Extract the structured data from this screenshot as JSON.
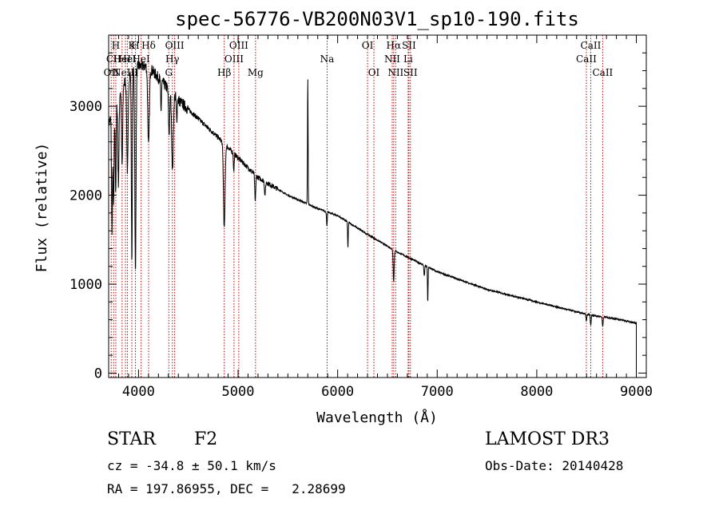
{
  "chart_data": {
    "type": "line",
    "title": "spec-56776-VB200N03V1_sp10-190.fits",
    "xlabel": "Wavelength (Å)",
    "ylabel": "Flux (relative)",
    "xlim": [
      3700,
      9100
    ],
    "ylim": [
      -50,
      3800
    ],
    "xticks": [
      4000,
      5000,
      6000,
      7000,
      8000,
      9000
    ],
    "yticks": [
      0,
      1000,
      2000,
      3000
    ],
    "continuum_anchors": {
      "wavelength": [
        3700,
        3800,
        3900,
        4000,
        4100,
        4200,
        4400,
        4600,
        4800,
        5000,
        5200,
        5500,
        5800,
        6000,
        6300,
        6600,
        7000,
        7500,
        8000,
        8500,
        8800,
        9000
      ],
      "flux": [
        2800,
        3150,
        3350,
        3450,
        3450,
        3320,
        3070,
        2860,
        2650,
        2420,
        2200,
        2000,
        1850,
        1770,
        1560,
        1360,
        1140,
        940,
        800,
        660,
        610,
        560
      ]
    },
    "absorption_lines": [
      {
        "wavelength": 3734,
        "depth": 1300,
        "width": 5
      },
      {
        "wavelength": 3750,
        "depth": 1100,
        "width": 5
      },
      {
        "wavelength": 3771,
        "depth": 1000,
        "width": 5
      },
      {
        "wavelength": 3798,
        "depth": 1000,
        "width": 6
      },
      {
        "wavelength": 3835,
        "depth": 900,
        "width": 6
      },
      {
        "wavelength": 3889,
        "depth": 1050,
        "width": 7
      },
      {
        "wavelength": 3933,
        "depth": 2100,
        "width": 5
      },
      {
        "wavelength": 3969,
        "depth": 2300,
        "width": 6
      },
      {
        "wavelength": 4101,
        "depth": 900,
        "width": 8
      },
      {
        "wavelength": 4226,
        "depth": 350,
        "width": 4
      },
      {
        "wavelength": 4307,
        "depth": 500,
        "width": 6
      },
      {
        "wavelength": 4341,
        "depth": 850,
        "width": 8
      },
      {
        "wavelength": 4384,
        "depth": 250,
        "width": 4
      },
      {
        "wavelength": 4861,
        "depth": 950,
        "width": 8
      },
      {
        "wavelength": 4957,
        "depth": 200,
        "width": 4
      },
      {
        "wavelength": 5172,
        "depth": 300,
        "width": 5
      },
      {
        "wavelength": 5270,
        "depth": 150,
        "width": 5
      },
      {
        "wavelength": 5892,
        "depth": 150,
        "width": 4
      },
      {
        "wavelength": 6103,
        "depth": 300,
        "width": 3
      },
      {
        "wavelength": 6563,
        "depth": 350,
        "width": 5
      },
      {
        "wavelength": 6870,
        "depth": 120,
        "width": 4
      },
      {
        "wavelength": 6905,
        "depth": 400,
        "width": 3
      },
      {
        "wavelength": 8498,
        "depth": 80,
        "width": 4
      },
      {
        "wavelength": 8542,
        "depth": 120,
        "width": 4
      },
      {
        "wavelength": 8662,
        "depth": 110,
        "width": 4
      }
    ],
    "emission_spikes": [
      {
        "wavelength": 5700,
        "height": 1400,
        "width": 3
      }
    ],
    "spectral_lines": [
      {
        "wavelength": 3726,
        "label": "OII",
        "row": 2
      },
      {
        "wavelength": 3750,
        "label": "CII",
        "row": 1
      },
      {
        "wavelength": 3772,
        "label": "H",
        "row": 0
      },
      {
        "wavelength": 3835,
        "label": "HeI",
        "row": 1
      },
      {
        "wavelength": 3869,
        "label": "NeIII",
        "row": 2
      },
      {
        "wavelength": 3889,
        "label": "HeI",
        "row": 1
      },
      {
        "wavelength": 3933,
        "label": "K",
        "row": 0
      },
      {
        "wavelength": 3969,
        "label": "H",
        "row": 0
      },
      {
        "wavelength": 4026,
        "label": "HeI",
        "row": 1
      },
      {
        "wavelength": 4101,
        "label": "Hδ",
        "row": 0
      },
      {
        "wavelength": 4304,
        "label": "G",
        "row": 2
      },
      {
        "wavelength": 4340,
        "label": "Hγ",
        "row": 1
      },
      {
        "wavelength": 4363,
        "label": "OIII",
        "row": 0
      },
      {
        "wavelength": 4861,
        "label": "Hβ",
        "row": 2
      },
      {
        "wavelength": 4959,
        "label": "OIII",
        "row": 1
      },
      {
        "wavelength": 5007,
        "label": "OIII",
        "row": 0
      },
      {
        "wavelength": 5175,
        "label": "Mg",
        "row": 2
      },
      {
        "wavelength": 5894,
        "label": "Na",
        "row": 1
      },
      {
        "wavelength": 6300,
        "label": "OI",
        "row": 0
      },
      {
        "wavelength": 6364,
        "label": "OI",
        "row": 2
      },
      {
        "wavelength": 6548,
        "label": "NII",
        "row": 1
      },
      {
        "wavelength": 6563,
        "label": "Hα",
        "row": 0
      },
      {
        "wavelength": 6583,
        "label": "NII",
        "row": 2
      },
      {
        "wavelength": 6716,
        "label": "SII",
        "row": 0
      },
      {
        "wavelength": 6731,
        "label": "SII",
        "row": 2
      },
      {
        "wavelength": 6708,
        "label": "Li",
        "row": 1
      },
      {
        "wavelength": 8498,
        "label": "CaII",
        "row": 1
      },
      {
        "wavelength": 8542,
        "label": "CaII",
        "row": 0
      },
      {
        "wavelength": 8662,
        "label": "CaII",
        "row": 2
      }
    ]
  },
  "footer": {
    "object_type": "STAR",
    "subclass": "F2",
    "survey": "LAMOST DR3",
    "cz_line": "cz = -34.8 ± 50.1 km/s",
    "obs_date": "Obs-Date: 20140428",
    "radec_line": "RA = 197.86955, DEC =   2.28699"
  },
  "colors": {
    "spectrum": "#000000",
    "line_marker": "#cc0000",
    "axes": "#000000",
    "background": "#ffffff"
  }
}
